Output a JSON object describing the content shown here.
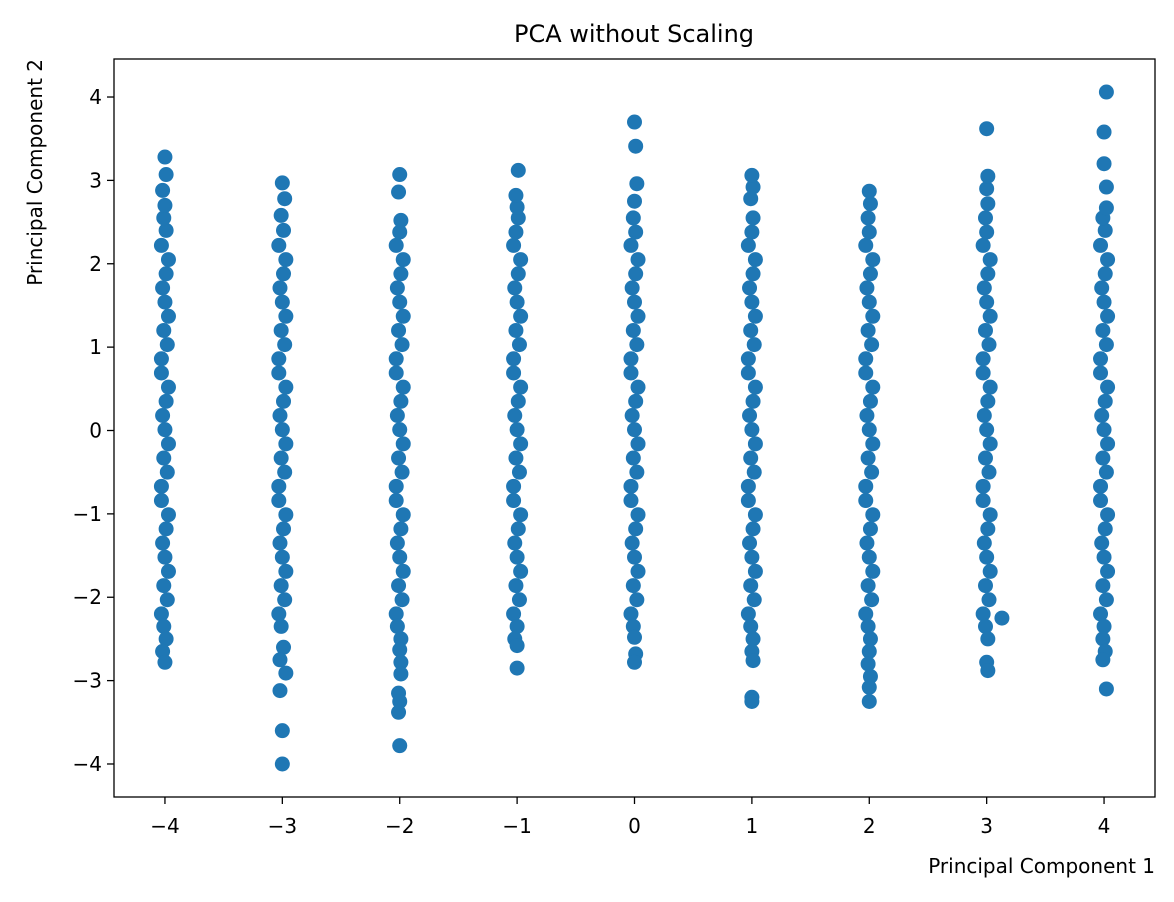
{
  "chart_data": {
    "type": "scatter",
    "title": "PCA without Scaling",
    "x_label": "Principal Component 1",
    "y_label": "Principal Component 2",
    "color": "#1f77b4",
    "grid": false,
    "xlim": [
      -4.434,
      4.434
    ],
    "ylim": [
      -4.396,
      4.456
    ],
    "xticks": [
      {
        "value": -4,
        "label": "−4"
      },
      {
        "value": -3,
        "label": "−3"
      },
      {
        "value": -2,
        "label": "−2"
      },
      {
        "value": -1,
        "label": "−1"
      },
      0,
      1,
      2,
      3,
      4
    ],
    "yticks": [
      {
        "value": -4,
        "label": "−4"
      },
      {
        "value": -3,
        "label": "−3"
      },
      {
        "value": -2,
        "label": "−2"
      },
      {
        "value": -1,
        "label": "−1"
      },
      0,
      1,
      2,
      3,
      4
    ],
    "x": [
      -4.03,
      -3.98,
      -4.01,
      -3.97,
      -4,
      -4.02,
      -3.99,
      -3.97,
      -4.03,
      -4.03,
      -3.98,
      -4.01,
      -3.97,
      -4,
      -4.02,
      -3.99,
      -3.97,
      -4.03,
      -4.03,
      -3.98,
      -4.01,
      -3.97,
      -4,
      -4.02,
      -3.99,
      -3.97,
      -4.03,
      -3.99,
      -4.01,
      -4.0,
      -4.02,
      -3.99,
      -4.0,
      -4.01,
      -3.99,
      -4.02,
      -4.0,
      -3.03,
      -2.98,
      -3.01,
      -2.97,
      -3,
      -3.02,
      -2.99,
      -2.97,
      -3.03,
      -3.03,
      -2.98,
      -3.01,
      -2.97,
      -3,
      -3.02,
      -2.99,
      -2.97,
      -3.03,
      -3.03,
      -2.98,
      -3.01,
      -2.97,
      -3,
      -3.02,
      -2.99,
      -2.97,
      -3.03,
      -2.99,
      -3.01,
      -2.98,
      -3.0,
      -3.01,
      -2.99,
      -3.02,
      -2.97,
      -3.02,
      -3.0,
      -3.0,
      -2.03,
      -1.98,
      -2.01,
      -1.97,
      -2,
      -2.02,
      -1.99,
      -1.97,
      -2.03,
      -2.03,
      -1.98,
      -2.01,
      -1.97,
      -2,
      -2.02,
      -1.99,
      -1.97,
      -2.03,
      -2.03,
      -1.98,
      -2.01,
      -1.97,
      -2,
      -2.02,
      -1.99,
      -1.97,
      -2.03,
      -2.0,
      -1.99,
      -2.01,
      -2.0,
      -2.02,
      -1.99,
      -2.0,
      -1.99,
      -1.99,
      -2.01,
      -2.0,
      -2.01,
      -2.0,
      -1.03,
      -0.98,
      -1.01,
      -0.97,
      -1,
      -1.02,
      -0.99,
      -0.97,
      -1.03,
      -1.03,
      -0.98,
      -1.01,
      -0.97,
      -1,
      -1.02,
      -0.99,
      -0.97,
      -1.03,
      -1.03,
      -0.98,
      -1.01,
      -0.97,
      -1,
      -1.02,
      -0.99,
      -0.97,
      -1.03,
      -1.01,
      -0.99,
      -1.0,
      -1.01,
      -0.99,
      -1.0,
      -1.02,
      -1.0,
      -1.0,
      -0.03,
      0.02,
      -0.01,
      0.03,
      0,
      -0.02,
      0.01,
      0.03,
      -0.03,
      -0.03,
      0.02,
      -0.01,
      0.03,
      0,
      -0.02,
      0.01,
      0.03,
      -0.03,
      -0.03,
      0.02,
      -0.01,
      0.03,
      0,
      -0.02,
      0.01,
      0.03,
      -0.03,
      0.01,
      -0.01,
      0.0,
      0.02,
      0.01,
      0.0,
      -0.01,
      0.0,
      0.01,
      0.0,
      0.97,
      1.02,
      0.99,
      1.03,
      1,
      0.98,
      1.01,
      1.03,
      0.97,
      0.97,
      1.02,
      0.99,
      1.03,
      1,
      0.98,
      1.01,
      1.03,
      0.97,
      0.97,
      1.02,
      0.99,
      1.03,
      1,
      0.98,
      1.01,
      1.03,
      0.97,
      1.0,
      1.01,
      0.99,
      1.01,
      1.0,
      0.99,
      1.01,
      1.0,
      1.01,
      1.0,
      1.0,
      1.97,
      2.02,
      1.99,
      2.03,
      2,
      1.98,
      2.01,
      2.03,
      1.97,
      1.97,
      2.02,
      1.99,
      2.03,
      2,
      1.98,
      2.01,
      2.03,
      1.97,
      1.97,
      2.02,
      1.99,
      2.03,
      2,
      1.98,
      2.01,
      2.03,
      1.97,
      2.0,
      1.99,
      2.01,
      2.0,
      1.99,
      2.01,
      2.0,
      1.99,
      2.01,
      2.0,
      2.0,
      2.97,
      3.02,
      2.99,
      3.03,
      3,
      2.98,
      3.01,
      3.03,
      2.97,
      2.97,
      3.02,
      2.99,
      3.03,
      3,
      2.98,
      3.01,
      3.03,
      2.97,
      2.97,
      3.02,
      2.99,
      3.03,
      3,
      2.98,
      3.01,
      3.03,
      2.97,
      3.0,
      2.99,
      3.01,
      3.0,
      3.01,
      3.0,
      2.99,
      3.01,
      3.0,
      3.01,
      3.13,
      3.97,
      4.02,
      3.99,
      4.03,
      4,
      3.98,
      4.01,
      4.03,
      3.97,
      3.97,
      4.02,
      3.99,
      4.03,
      4,
      3.98,
      4.01,
      4.03,
      3.97,
      3.97,
      4.02,
      3.99,
      4.03,
      4,
      3.98,
      4.01,
      4.03,
      3.97,
      4.01,
      3.99,
      4.02,
      4.02,
      4.0,
      4.0,
      4.02,
      4.0,
      3.99,
      4.01,
      3.99,
      4.02
    ],
    "y": [
      -2.2,
      -2.03,
      -1.86,
      -1.69,
      -1.52,
      -1.35,
      -1.18,
      -1.01,
      -0.84,
      -0.67,
      -0.5,
      -0.33,
      -0.16,
      0.01,
      0.18,
      0.35,
      0.52,
      0.69,
      0.86,
      1.03,
      1.2,
      1.37,
      1.54,
      1.71,
      1.88,
      2.05,
      2.22,
      2.4,
      2.55,
      2.7,
      2.88,
      3.07,
      3.28,
      -2.35,
      -2.5,
      -2.65,
      -2.78,
      -2.2,
      -2.03,
      -1.86,
      -1.69,
      -1.52,
      -1.35,
      -1.18,
      -1.01,
      -0.84,
      -0.67,
      -0.5,
      -0.33,
      -0.16,
      0.01,
      0.18,
      0.35,
      0.52,
      0.69,
      0.86,
      1.03,
      1.2,
      1.37,
      1.54,
      1.71,
      1.88,
      2.05,
      2.22,
      2.4,
      2.58,
      2.78,
      2.97,
      -2.35,
      -2.6,
      -2.75,
      -2.91,
      -3.12,
      -3.6,
      -4.0,
      -2.2,
      -2.03,
      -1.86,
      -1.69,
      -1.52,
      -1.35,
      -1.18,
      -1.01,
      -0.84,
      -0.67,
      -0.5,
      -0.33,
      -0.16,
      0.01,
      0.18,
      0.35,
      0.52,
      0.69,
      0.86,
      1.03,
      1.2,
      1.37,
      1.54,
      1.71,
      1.88,
      2.05,
      2.22,
      2.38,
      2.52,
      2.86,
      3.07,
      -2.35,
      -2.5,
      -2.63,
      -2.78,
      -2.92,
      -3.15,
      -3.25,
      -3.38,
      -3.78,
      -2.2,
      -2.03,
      -1.86,
      -1.69,
      -1.52,
      -1.35,
      -1.18,
      -1.01,
      -0.84,
      -0.67,
      -0.5,
      -0.33,
      -0.16,
      0.01,
      0.18,
      0.35,
      0.52,
      0.69,
      0.86,
      1.03,
      1.2,
      1.37,
      1.54,
      1.71,
      1.88,
      2.05,
      2.22,
      2.38,
      2.55,
      2.68,
      2.82,
      3.12,
      -2.35,
      -2.5,
      -2.58,
      -2.85,
      -2.2,
      -2.03,
      -1.86,
      -1.69,
      -1.52,
      -1.35,
      -1.18,
      -1.01,
      -0.84,
      -0.67,
      -0.5,
      -0.33,
      -0.16,
      0.01,
      0.18,
      0.35,
      0.52,
      0.69,
      0.86,
      1.03,
      1.2,
      1.37,
      1.54,
      1.71,
      1.88,
      2.05,
      2.22,
      2.38,
      2.55,
      2.75,
      2.96,
      3.41,
      3.7,
      -2.35,
      -2.48,
      -2.68,
      -2.78,
      -2.2,
      -2.03,
      -1.86,
      -1.69,
      -1.52,
      -1.35,
      -1.18,
      -1.01,
      -0.84,
      -0.67,
      -0.5,
      -0.33,
      -0.16,
      0.01,
      0.18,
      0.35,
      0.52,
      0.69,
      0.86,
      1.03,
      1.2,
      1.37,
      1.54,
      1.71,
      1.88,
      2.05,
      2.22,
      2.38,
      2.55,
      2.78,
      2.92,
      3.06,
      -2.35,
      -2.5,
      -2.65,
      -2.76,
      -3.2,
      -3.25,
      -2.2,
      -2.03,
      -1.86,
      -1.69,
      -1.52,
      -1.35,
      -1.18,
      -1.01,
      -0.84,
      -0.67,
      -0.5,
      -0.33,
      -0.16,
      0.01,
      0.18,
      0.35,
      0.52,
      0.69,
      0.86,
      1.03,
      1.2,
      1.37,
      1.54,
      1.71,
      1.88,
      2.05,
      2.22,
      2.38,
      2.55,
      2.72,
      2.87,
      -2.35,
      -2.5,
      -2.65,
      -2.8,
      -2.95,
      -3.08,
      -3.25,
      -2.2,
      -2.03,
      -1.86,
      -1.69,
      -1.52,
      -1.35,
      -1.18,
      -1.01,
      -0.84,
      -0.67,
      -0.5,
      -0.33,
      -0.16,
      0.01,
      0.18,
      0.35,
      0.52,
      0.69,
      0.86,
      1.03,
      1.2,
      1.37,
      1.54,
      1.71,
      1.88,
      2.05,
      2.22,
      2.38,
      2.55,
      2.72,
      2.9,
      3.05,
      3.62,
      -2.35,
      -2.5,
      -2.78,
      -2.88,
      -2.25,
      -2.2,
      -2.03,
      -1.86,
      -1.69,
      -1.52,
      -1.35,
      -1.18,
      -1.01,
      -0.84,
      -0.67,
      -0.5,
      -0.33,
      -0.16,
      0.01,
      0.18,
      0.35,
      0.52,
      0.69,
      0.86,
      1.03,
      1.2,
      1.37,
      1.54,
      1.71,
      1.88,
      2.05,
      2.22,
      2.4,
      2.55,
      2.67,
      2.92,
      3.2,
      3.58,
      4.06,
      -2.35,
      -2.5,
      -2.65,
      -2.75,
      -3.1
    ]
  }
}
